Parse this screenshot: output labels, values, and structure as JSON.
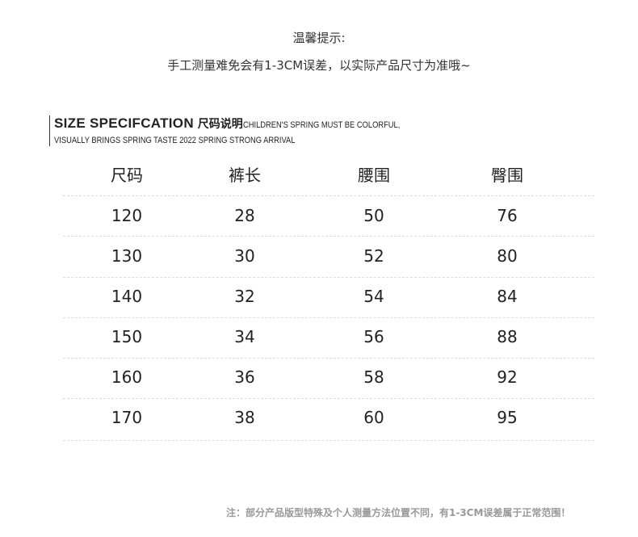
{
  "tips": {
    "title": "温馨提示:",
    "text": "手工测量难免会有1-3CM误差，以实际产品尺寸为准哦~"
  },
  "heading": {
    "main": "SIZE SPECIFCATION",
    "zh": "尺码说明",
    "line1": "CHILDREN'S SPRING MUST BE COLORFUL,",
    "line2": "VISUALLY BRINGS SPRING TASTE 2022 SPRING STRONG ARRIVAL"
  },
  "table": {
    "headers": [
      "尺码",
      "裤长",
      "腰围",
      "臀围"
    ],
    "rows": [
      [
        "120",
        "28",
        "50",
        "76"
      ],
      [
        "130",
        "30",
        "52",
        "80"
      ],
      [
        "140",
        "32",
        "54",
        "84"
      ],
      [
        "150",
        "34",
        "56",
        "88"
      ],
      [
        "160",
        "36",
        "58",
        "92"
      ],
      [
        "170",
        "38",
        "60",
        "95"
      ]
    ]
  },
  "note": "注：部分产品版型特殊及个人测量方法位置不同，有1-3CM误差属于正常范围！"
}
